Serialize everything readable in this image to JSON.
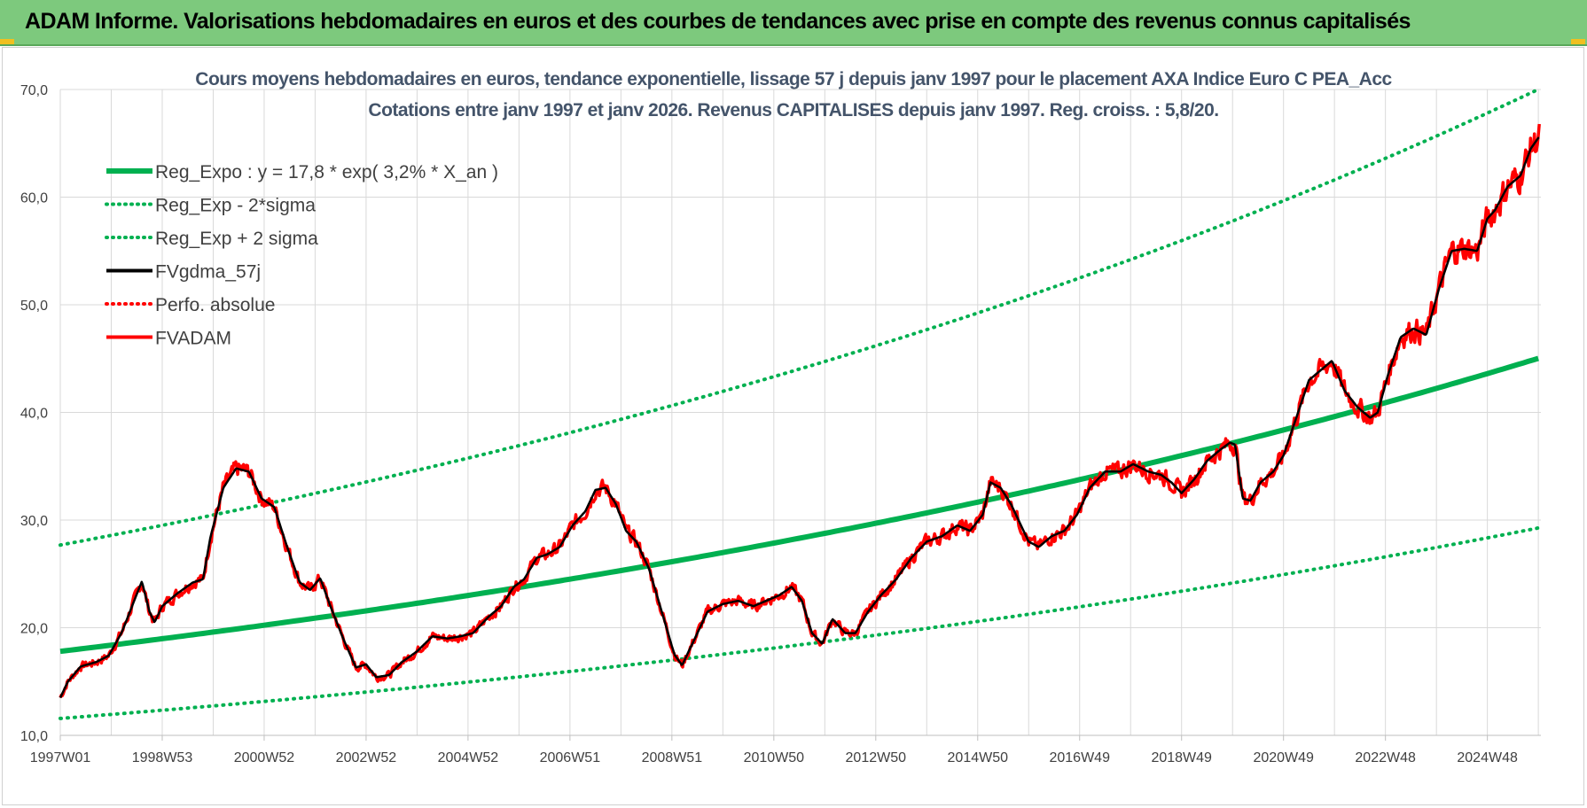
{
  "header": {
    "title": "ADAM Informe. Valorisations hebdomadaires en euros et des courbes de tendances avec prise en compte des revenus connus capitalisés",
    "background_color": "#7dc97d"
  },
  "chart_data": {
    "type": "line",
    "title_lines": [
      "Cours moyens hebdomadaires en euros, tendance exponentielle, lissage 57 j depuis janv 1997 pour le placement AXA Indice Euro C PEA_Acc",
      "Cotations entre janv 1997 et janv 2026. Revenus CAPITALISES depuis janv 1997. Reg. croiss. : 5,8/20."
    ],
    "xlabel": "",
    "ylabel": "",
    "ylim": [
      10,
      70
    ],
    "xlim": [
      1997.0,
      2026.05
    ],
    "grid": true,
    "legend_position": "top-left",
    "y_ticks": [
      "10,0",
      "20,0",
      "30,0",
      "40,0",
      "50,0",
      "60,0",
      "70,0"
    ],
    "y_tick_values": [
      10,
      20,
      30,
      40,
      50,
      60,
      70
    ],
    "x_ticks": [
      {
        "label": "1997W01",
        "x": 1997.0
      },
      {
        "label": "1998W53",
        "x": 1999.0
      },
      {
        "label": "2000W52",
        "x": 2001.0
      },
      {
        "label": "2002W52",
        "x": 2003.0
      },
      {
        "label": "2004W52",
        "x": 2005.0
      },
      {
        "label": "2006W51",
        "x": 2007.0
      },
      {
        "label": "2008W51",
        "x": 2009.0
      },
      {
        "label": "2010W50",
        "x": 2011.0
      },
      {
        "label": "2012W50",
        "x": 2013.0
      },
      {
        "label": "2014W50",
        "x": 2015.0
      },
      {
        "label": "2016W49",
        "x": 2017.0
      },
      {
        "label": "2018W49",
        "x": 2019.0
      },
      {
        "label": "2020W49",
        "x": 2021.0
      },
      {
        "label": "2022W48",
        "x": 2023.0
      },
      {
        "label": "2024W48",
        "x": 2025.0
      }
    ],
    "regression": {
      "a": 17.8,
      "rate": 0.032,
      "sigma_low_factor": 0.65,
      "sigma_high_factor": 1.555
    },
    "series": [
      {
        "name": "Reg_Expo : y = 17,8 * exp( 3,2% *  X_an )",
        "color": "#00b050",
        "style": "solid-thick"
      },
      {
        "name": "Reg_Exp - 2*sigma",
        "color": "#00b050",
        "style": "dotted"
      },
      {
        "name": "Reg_Exp + 2 sigma",
        "color": "#00b050",
        "style": "dotted"
      },
      {
        "name": "FVgdma_57j",
        "color": "#000000",
        "style": "solid"
      },
      {
        "name": "Perfo. absolue",
        "color": "#ff0000",
        "style": "dotted"
      },
      {
        "name": "FVADAM",
        "color": "#ff0000",
        "style": "solid"
      }
    ],
    "price_points": [
      [
        1997.0,
        13.5
      ],
      [
        1997.15,
        15.0
      ],
      [
        1997.4,
        16.4
      ],
      [
        1997.7,
        16.8
      ],
      [
        1997.95,
        17.4
      ],
      [
        1998.2,
        19.5
      ],
      [
        1998.45,
        22.5
      ],
      [
        1998.6,
        24.3
      ],
      [
        1998.75,
        21.5
      ],
      [
        1998.85,
        20.5
      ],
      [
        1999.0,
        22.0
      ],
      [
        1999.3,
        23.2
      ],
      [
        1999.6,
        24.2
      ],
      [
        1999.8,
        24.5
      ],
      [
        1999.95,
        28.5
      ],
      [
        2000.2,
        33.0
      ],
      [
        2000.45,
        34.8
      ],
      [
        2000.7,
        34.5
      ],
      [
        2000.95,
        32.0
      ],
      [
        2001.2,
        31.2
      ],
      [
        2001.45,
        27.5
      ],
      [
        2001.7,
        24.2
      ],
      [
        2001.9,
        23.5
      ],
      [
        2002.1,
        24.6
      ],
      [
        2002.3,
        22.0
      ],
      [
        2002.55,
        19.0
      ],
      [
        2002.8,
        16.3
      ],
      [
        2003.0,
        16.6
      ],
      [
        2003.2,
        15.4
      ],
      [
        2003.45,
        15.6
      ],
      [
        2003.7,
        16.8
      ],
      [
        2004.0,
        17.8
      ],
      [
        2004.3,
        19.2
      ],
      [
        2004.6,
        19.0
      ],
      [
        2004.85,
        19.2
      ],
      [
        2005.1,
        19.5
      ],
      [
        2005.4,
        21.0
      ],
      [
        2005.65,
        22.0
      ],
      [
        2005.9,
        23.8
      ],
      [
        2006.1,
        24.5
      ],
      [
        2006.35,
        26.5
      ],
      [
        2006.55,
        26.8
      ],
      [
        2006.8,
        27.5
      ],
      [
        2007.05,
        29.5
      ],
      [
        2007.3,
        30.8
      ],
      [
        2007.5,
        32.8
      ],
      [
        2007.7,
        33.0
      ],
      [
        2007.9,
        31.5
      ],
      [
        2008.1,
        29.0
      ],
      [
        2008.3,
        28.0
      ],
      [
        2008.55,
        25.5
      ],
      [
        2008.8,
        21.5
      ],
      [
        2009.05,
        17.5
      ],
      [
        2009.2,
        16.5
      ],
      [
        2009.45,
        19.0
      ],
      [
        2009.7,
        21.5
      ],
      [
        2010.0,
        22.2
      ],
      [
        2010.3,
        22.5
      ],
      [
        2010.6,
        22.0
      ],
      [
        2010.85,
        22.5
      ],
      [
        2011.1,
        23.0
      ],
      [
        2011.35,
        23.8
      ],
      [
        2011.55,
        22.5
      ],
      [
        2011.75,
        19.5
      ],
      [
        2011.95,
        18.5
      ],
      [
        2012.15,
        20.8
      ],
      [
        2012.4,
        19.5
      ],
      [
        2012.6,
        19.5
      ],
      [
        2012.85,
        21.5
      ],
      [
        2013.1,
        23.0
      ],
      [
        2013.4,
        24.5
      ],
      [
        2013.7,
        26.5
      ],
      [
        2014.0,
        28.0
      ],
      [
        2014.3,
        28.5
      ],
      [
        2014.6,
        29.5
      ],
      [
        2014.85,
        29.0
      ],
      [
        2015.1,
        30.5
      ],
      [
        2015.25,
        33.5
      ],
      [
        2015.45,
        33.0
      ],
      [
        2015.65,
        31.5
      ],
      [
        2015.8,
        30.0
      ],
      [
        2016.0,
        28.0
      ],
      [
        2016.2,
        27.5
      ],
      [
        2016.45,
        28.5
      ],
      [
        2016.7,
        29.0
      ],
      [
        2016.95,
        30.5
      ],
      [
        2017.2,
        33.0
      ],
      [
        2017.5,
        34.5
      ],
      [
        2017.8,
        34.5
      ],
      [
        2018.05,
        35.2
      ],
      [
        2018.35,
        34.5
      ],
      [
        2018.6,
        34.2
      ],
      [
        2018.8,
        33.5
      ],
      [
        2019.0,
        32.5
      ],
      [
        2019.25,
        33.8
      ],
      [
        2019.5,
        35.5
      ],
      [
        2019.75,
        36.5
      ],
      [
        2019.95,
        37.2
      ],
      [
        2020.05,
        37.0
      ],
      [
        2020.2,
        32.0
      ],
      [
        2020.35,
        31.8
      ],
      [
        2020.55,
        33.5
      ],
      [
        2020.8,
        34.5
      ],
      [
        2021.0,
        36.0
      ],
      [
        2021.25,
        39.5
      ],
      [
        2021.5,
        43.0
      ],
      [
        2021.75,
        44.0
      ],
      [
        2021.95,
        44.8
      ],
      [
        2022.2,
        42.0
      ],
      [
        2022.45,
        40.5
      ],
      [
        2022.7,
        39.5
      ],
      [
        2022.85,
        40.0
      ],
      [
        2023.05,
        43.5
      ],
      [
        2023.3,
        47.0
      ],
      [
        2023.55,
        47.8
      ],
      [
        2023.8,
        47.2
      ],
      [
        2024.05,
        51.5
      ],
      [
        2024.3,
        55.0
      ],
      [
        2024.55,
        55.2
      ],
      [
        2024.8,
        55.0
      ],
      [
        2025.0,
        58.0
      ],
      [
        2025.15,
        58.8
      ],
      [
        2025.4,
        61.0
      ],
      [
        2025.65,
        62.0
      ],
      [
        2025.85,
        64.5
      ],
      [
        2026.0,
        65.5
      ]
    ]
  }
}
